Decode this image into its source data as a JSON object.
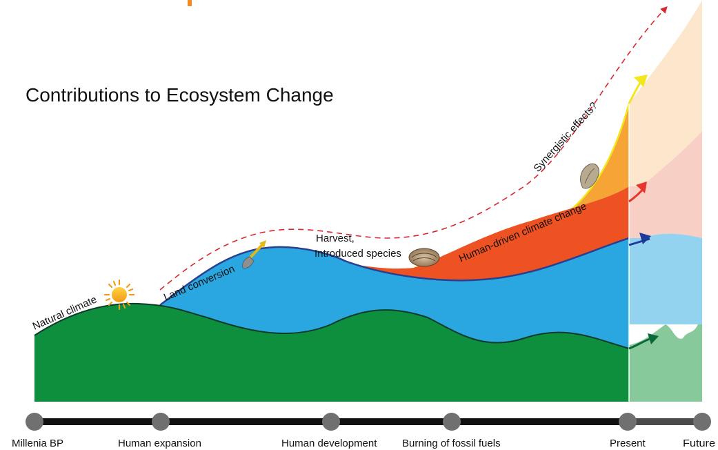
{
  "title": "Contributions to Ecosystem Change",
  "layers": {
    "natural_climate": {
      "label": "Natural climate",
      "color": "#0e8f3e",
      "future_color": "#88c99b",
      "icon": "sun-icon"
    },
    "land_conversion": {
      "label": "Land conversion",
      "color": "#2aa6e0",
      "future_color": "#93d3ef",
      "icon": "shovel-icon"
    },
    "harvest": {
      "label_line1": "Harvest,",
      "label_line2": "Introduced species",
      "color": "#ee5223",
      "future_color": "#f8cfc4",
      "icon": "shell-icon"
    },
    "human_climate": {
      "label": "Human-driven climate change",
      "color": "#f7a436",
      "future_color": "#fde7cc",
      "icon": "oyster-icon"
    },
    "synergistic": {
      "label": "Synergistic effects?",
      "color": "#d9262e"
    }
  },
  "timeline": {
    "points": [
      {
        "label": "Millenia BP"
      },
      {
        "label": "Human expansion"
      },
      {
        "label": "Human development"
      },
      {
        "label": "Burning of fossil fuels"
      },
      {
        "label": "Present"
      },
      {
        "label": "Future"
      }
    ]
  },
  "colors": {
    "accent_orange": "#f08a24",
    "arrow_green": "#0b6a3a",
    "arrow_blue": "#1d3b9c",
    "arrow_red": "#e8352a",
    "arrow_yellow": "#f2e61c",
    "timeline_bar": "#111111",
    "timeline_node": "#707070"
  }
}
